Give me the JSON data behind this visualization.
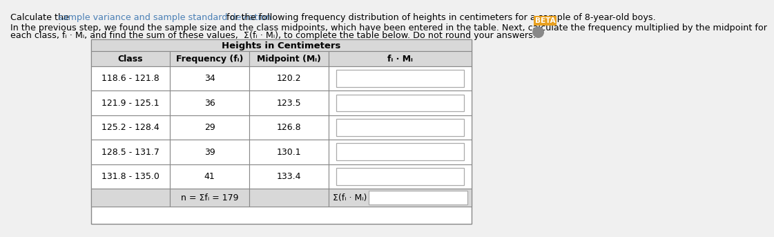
{
  "title_parts": [
    {
      "text": "Calculate the ",
      "color": "#000000",
      "underline": false
    },
    {
      "text": "sample variance and sample standard deviation",
      "color": "#4a7fb5",
      "underline": true
    },
    {
      "text": " for the following frequency distribution of heights in centimeters for a sample of 8-year-old boys.",
      "color": "#000000",
      "underline": false
    }
  ],
  "body_line1": "In the previous step, we found the sample size and the class midpoints, which have been entered in the table. Next, calculate the frequency multiplied by the midpoint for",
  "body_line2": "each class, fᵢ · Mᵢ, and find the sum of these values,  Σ(fᵢ · Mᵢ), to complete the table below. Do not round your answers.",
  "table_title": "Heights in Centimeters",
  "col_headers": [
    "Class",
    "Frequency (fᵢ)",
    "Midpoint (Mᵢ)",
    "fᵢ · Mᵢ"
  ],
  "classes": [
    "118.6 - 121.8",
    "121.9 - 125.1",
    "125.2 - 128.4",
    "128.5 - 131.7",
    "131.8 - 135.0"
  ],
  "frequencies": [
    "34",
    "36",
    "29",
    "39",
    "41"
  ],
  "midpoints": [
    "120.2",
    "123.5",
    "126.8",
    "130.1",
    "133.4"
  ],
  "n_label": "n = Σfᵢ = 179",
  "sum_label": "Σ(fᵢ · Mᵢ) =",
  "bg_color": "#f0f0f0",
  "table_bg": "#ffffff",
  "header_bg": "#d8d8d8",
  "row_alt_bg": "#e8e8e8",
  "border_color": "#888888",
  "text_color": "#000000",
  "beta_bg": "#e8a020",
  "beta_text": "BETA"
}
